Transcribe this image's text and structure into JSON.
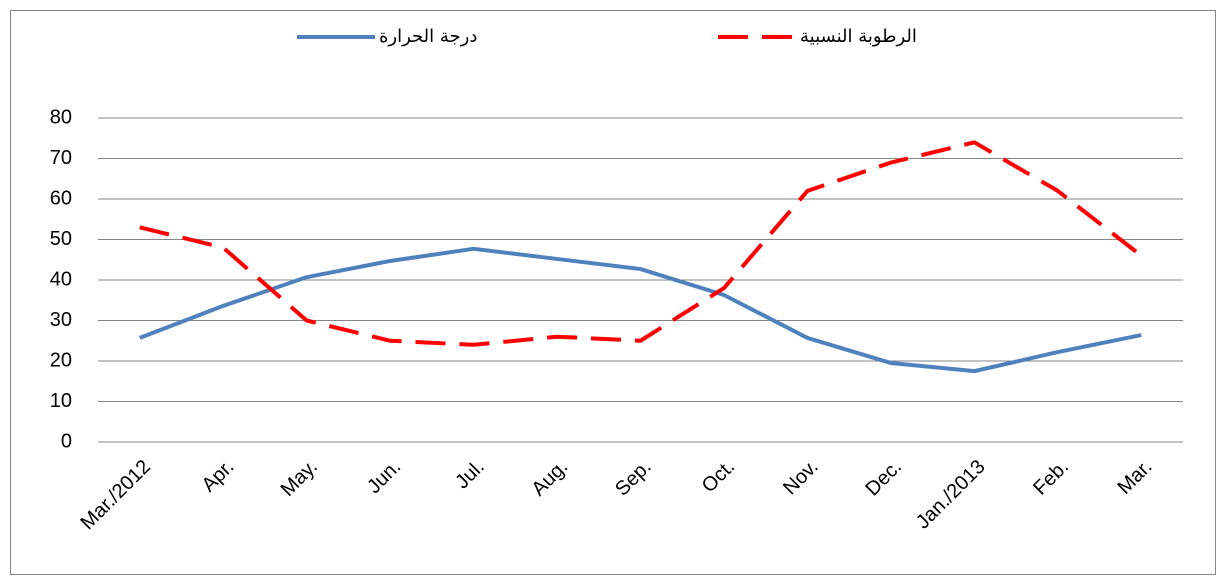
{
  "chart_data": {
    "type": "line",
    "categories": [
      "Mar./2012",
      "Apr.",
      "May.",
      "Jun.",
      "Jul.",
      "Aug.",
      "Sep.",
      "Oct.",
      "Nov.",
      "Dec.",
      "Jan./2013",
      "Feb.",
      "Mar."
    ],
    "series": [
      {
        "name": "درجة الحرارة",
        "color": "#4f81bd",
        "line_style": "solid",
        "values": [
          25.7,
          33.6,
          40.7,
          44.7,
          47.7,
          45.2,
          42.7,
          36.3,
          25.7,
          19.5,
          17.5,
          22.2,
          26.4
        ]
      },
      {
        "name": "الرطوبة النسبية",
        "color": "#ff0000",
        "line_style": "dashed",
        "values": [
          53,
          48,
          30,
          25,
          24,
          26,
          25,
          38,
          62,
          69,
          74,
          62,
          46
        ]
      }
    ],
    "ylim": [
      0,
      80
    ],
    "yticks": [
      0,
      10,
      20,
      30,
      40,
      50,
      60,
      70,
      80
    ],
    "grid": true
  }
}
